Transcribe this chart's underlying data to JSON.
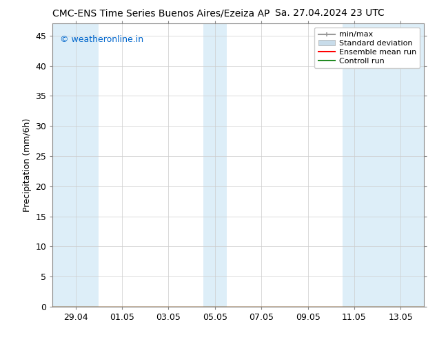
{
  "title": "CMC-ENS Time Series Buenos Aires/Ezeiza AP",
  "title_right": "Sa. 27.04.2024 23 UTC",
  "ylabel": "Precipitation (mm/6h)",
  "watermark": "© weatheronline.in",
  "watermark_color": "#0066cc",
  "ylim": [
    0,
    47
  ],
  "yticks": [
    0,
    5,
    10,
    15,
    20,
    25,
    30,
    35,
    40,
    45
  ],
  "xtick_labels": [
    "29.04",
    "01.05",
    "03.05",
    "05.05",
    "07.05",
    "09.05",
    "11.05",
    "13.05"
  ],
  "band_color": "#ddeef8",
  "background_color": "#ffffff",
  "grid_color": "#cccccc",
  "spine_color": "#888888",
  "legend_fontsize": 8,
  "title_fontsize": 10,
  "ylabel_fontsize": 9,
  "tick_fontsize": 9
}
